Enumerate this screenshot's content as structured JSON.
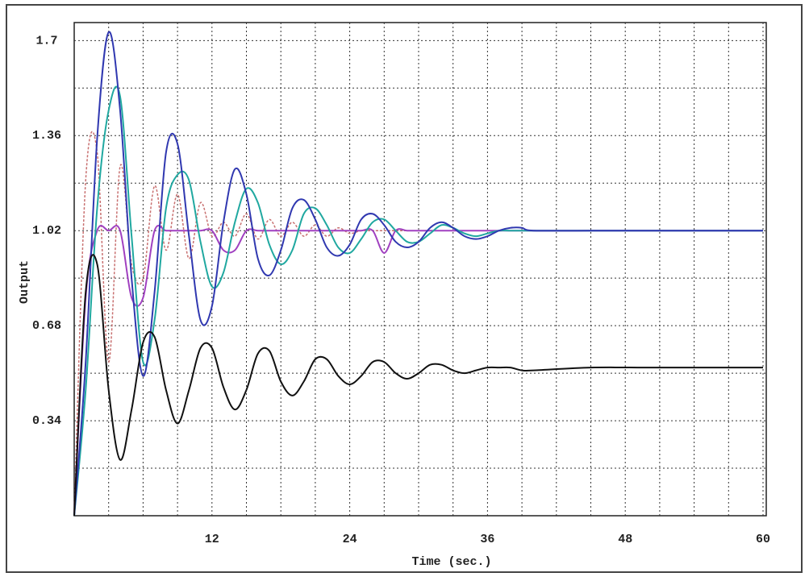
{
  "chart_data": {
    "type": "line",
    "x_label": "Time (sec.)",
    "y_label": "Output",
    "x": [
      0,
      1,
      2,
      3,
      4,
      5,
      6,
      7,
      8,
      9,
      10,
      11,
      12,
      13,
      14,
      15,
      16,
      17,
      18,
      19,
      20,
      21,
      22,
      23,
      24,
      25,
      26,
      27,
      28,
      29,
      30,
      31,
      32,
      33,
      34,
      35,
      36,
      37,
      38,
      39,
      40,
      45,
      50,
      55,
      60
    ],
    "series": [
      {
        "color": "#c87070",
        "dash": true,
        "values": [
          0,
          1.2,
          1.3,
          0.55,
          1.25,
          0.9,
          0.85,
          1.18,
          0.95,
          1.15,
          0.92,
          1.12,
          1.0,
          1.05,
          1.0,
          1.08,
          0.99,
          1.06,
          1.0,
          1.05,
          1.0,
          1.04,
          1.0,
          1.03,
          1.01,
          1.02,
          1.02,
          1.02,
          1.02,
          1.02,
          1.02,
          1.02,
          1.02,
          1.02,
          1.02,
          1.02,
          1.02,
          1.02,
          1.02,
          1.02,
          1.02,
          1.02,
          1.02,
          1.02,
          1.02
        ]
      },
      {
        "color": "#a040c0",
        "dash": false,
        "values": [
          0,
          0.78,
          1.02,
          1.02,
          1.02,
          0.78,
          0.78,
          1.02,
          1.02,
          1.02,
          1.02,
          1.02,
          1.02,
          0.95,
          0.95,
          1.02,
          1.02,
          1.02,
          1.02,
          1.02,
          1.02,
          1.02,
          1.02,
          1.02,
          1.02,
          1.02,
          1.02,
          0.94,
          1.02,
          1.02,
          1.02,
          1.02,
          1.02,
          1.02,
          1.02,
          1.02,
          1.02,
          1.02,
          1.02,
          1.02,
          1.02,
          1.02,
          1.02,
          1.02,
          1.02
        ]
      },
      {
        "color": "#20a8a0",
        "dash": false,
        "values": [
          0,
          0.45,
          1.1,
          1.45,
          1.5,
          1.0,
          0.55,
          0.7,
          1.1,
          1.22,
          1.2,
          0.98,
          0.82,
          0.87,
          1.05,
          1.17,
          1.12,
          0.97,
          0.9,
          0.95,
          1.08,
          1.1,
          1.04,
          0.96,
          0.94,
          0.99,
          1.05,
          1.06,
          1.02,
          0.98,
          0.98,
          1.01,
          1.04,
          1.03,
          1.01,
          1.0,
          1.01,
          1.02,
          1.02,
          1.02,
          1.02,
          1.02,
          1.02,
          1.02,
          1.02
        ]
      },
      {
        "color": "#3038b0",
        "dash": false,
        "values": [
          0,
          0.55,
          1.35,
          1.73,
          1.45,
          0.85,
          0.5,
          0.8,
          1.3,
          1.33,
          1.0,
          0.7,
          0.75,
          1.05,
          1.24,
          1.15,
          0.92,
          0.86,
          0.95,
          1.1,
          1.13,
          1.06,
          0.96,
          0.93,
          0.97,
          1.06,
          1.08,
          1.04,
          0.98,
          0.96,
          0.98,
          1.03,
          1.05,
          1.03,
          1.0,
          0.99,
          1.0,
          1.02,
          1.03,
          1.03,
          1.02,
          1.02,
          1.02,
          1.02,
          1.02
        ]
      },
      {
        "color": "#111111",
        "dash": false,
        "values": [
          0,
          0.8,
          0.9,
          0.45,
          0.2,
          0.38,
          0.62,
          0.64,
          0.45,
          0.33,
          0.45,
          0.6,
          0.6,
          0.46,
          0.38,
          0.45,
          0.58,
          0.59,
          0.48,
          0.43,
          0.48,
          0.56,
          0.56,
          0.5,
          0.47,
          0.5,
          0.55,
          0.55,
          0.51,
          0.49,
          0.51,
          0.54,
          0.54,
          0.52,
          0.51,
          0.52,
          0.53,
          0.53,
          0.53,
          0.52,
          0.52,
          0.53,
          0.53,
          0.53,
          0.53
        ]
      }
    ],
    "xlim": [
      0,
      60
    ],
    "ylim": [
      0,
      1.75
    ],
    "xticks": [
      12,
      24,
      36,
      48,
      60
    ],
    "yticks": [
      0.34,
      0.68,
      1.02,
      1.36,
      1.7
    ],
    "grid": true
  }
}
